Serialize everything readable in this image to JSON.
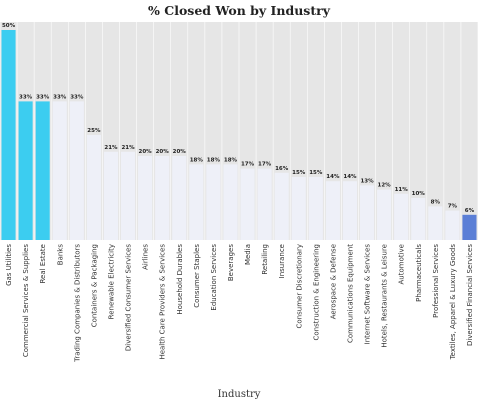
{
  "chart_data": {
    "type": "bar",
    "title": "% Closed Won by Industry",
    "xlabel": "Industry",
    "ylabel": "",
    "ylim": [
      0,
      50
    ],
    "value_suffix": "%",
    "categories": [
      "Gas Utilities",
      "Commercial Services & Supplies",
      "Real Estate",
      "Banks",
      "Trading Companies & Distributors",
      "Containers & Packaging",
      "Renewable Electricity",
      "Diversified Consumer Services",
      "Airlines",
      "Health Care Providers & Services",
      "Household Durables",
      "Consumer Staples",
      "Education Services",
      "Beverages",
      "Media",
      "Retailing",
      "Insurance",
      "Consumer Discretionary",
      "Construction & Engineering",
      "Aerospace & Defense",
      "Communications Equipment",
      "Internet Software & Services",
      "Hotels, Restaurants & Leisure",
      "Automotive",
      "Pharmaceuticals",
      "Professional Services",
      "Textiles, Apparel & Luxury Goods",
      "Diversified Financial Services"
    ],
    "values": [
      50,
      33,
      33,
      33,
      33,
      25,
      21,
      21,
      20,
      20,
      20,
      18,
      18,
      18,
      17,
      17,
      16,
      15,
      15,
      14,
      14,
      13,
      12,
      11,
      10,
      8,
      7,
      6
    ],
    "colors": {
      "highlight_top": "#3ccdf0",
      "highlight_bottom": "#5b7fd6",
      "default": "#eef0f8",
      "plot_background": "#e6e6e6",
      "grid": "#ffffff"
    },
    "bar_colors": [
      "#3ccdf0",
      "#3ccdf0",
      "#3ccdf0",
      "#eef0f8",
      "#eef0f8",
      "#eef0f8",
      "#eef0f8",
      "#eef0f8",
      "#eef0f8",
      "#eef0f8",
      "#eef0f8",
      "#eef0f8",
      "#eef0f8",
      "#eef0f8",
      "#eef0f8",
      "#eef0f8",
      "#eef0f8",
      "#eef0f8",
      "#eef0f8",
      "#eef0f8",
      "#eef0f8",
      "#eef0f8",
      "#eef0f8",
      "#eef0f8",
      "#eef0f8",
      "#eef0f8",
      "#eef0f8",
      "#5b7fd6"
    ],
    "grid": true,
    "legend": "none"
  }
}
